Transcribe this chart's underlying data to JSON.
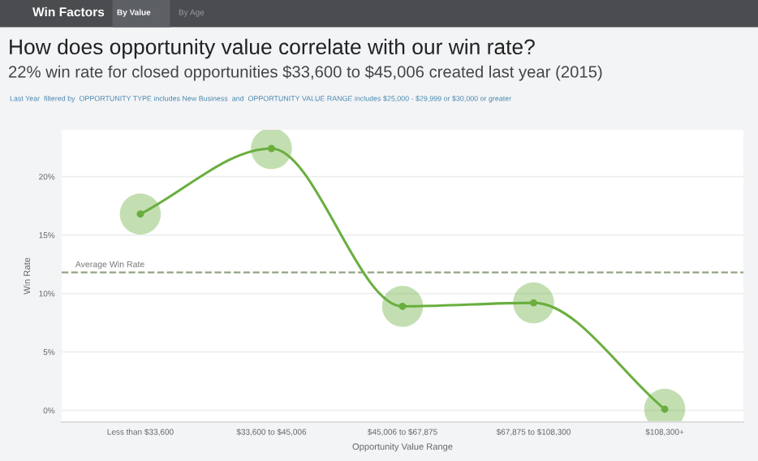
{
  "chart_data": {
    "type": "line",
    "title": "How does opportunity value correlate with our win rate?",
    "subtitle": "22% win rate for closed opportunities $33,600 to $45,006 created last year (2015)",
    "annotations": [
      "Win Factors",
      "By Value",
      "By Age",
      "Last Year  filtered by  OPPORTUNITY TYPE includes New Business  and  OPPORTUNITY VALUE RANGE includes $25,000 - $29,999 or $30,000 or greater"
    ],
    "xlabel": "Opportunity Value Range",
    "ylabel": "Win Rate",
    "categories": [
      "Less than $33,600",
      "$33,600 to $45,006",
      "$45,006 to $67,875",
      "$67,875 to $108,300",
      "$108,300+"
    ],
    "series": [
      {
        "color": "#6aae3f",
        "values": [
          16.8,
          22.4,
          8.9,
          9.2,
          0.1
        ]
      }
    ],
    "ylim": [
      -1,
      24
    ],
    "yticks": [
      {
        "value": 0,
        "label": "0%"
      },
      {
        "value": 5,
        "label": "5%"
      },
      {
        "value": 10,
        "label": "10%"
      },
      {
        "value": 15,
        "label": "15%"
      },
      {
        "value": 20,
        "label": "20%"
      }
    ],
    "ref_lines": [
      {
        "axis": "y",
        "value": 11.8,
        "label": "Average Win Rate",
        "color": "#93a382",
        "line_style": "dashed"
      }
    ],
    "grid": "y",
    "marker": "circle",
    "line_style": "solid"
  }
}
